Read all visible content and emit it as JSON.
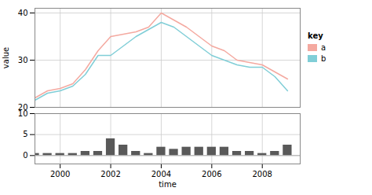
{
  "chart_data": [
    {
      "type": "line",
      "x": [
        1999,
        1999.5,
        2000,
        2000.5,
        2001,
        2001.5,
        2002,
        2002.5,
        2003,
        2003.5,
        2004,
        2004.5,
        2005,
        2005.5,
        2006,
        2006.5,
        2007,
        2007.5,
        2008,
        2008.5,
        2009
      ],
      "series": [
        {
          "name": "a",
          "color": "#F4A9A0",
          "values": [
            22,
            23.5,
            24,
            25,
            28,
            32,
            35,
            35.5,
            36,
            37,
            40,
            38.5,
            37,
            35,
            33,
            32,
            30,
            29.5,
            29,
            27.5,
            26
          ]
        },
        {
          "name": "b",
          "color": "#80CED7",
          "values": [
            21.5,
            23,
            23.5,
            24.5,
            27,
            31,
            31,
            33,
            35,
            36.5,
            38,
            37,
            35,
            33,
            31,
            30,
            29,
            28.5,
            28.5,
            26.5,
            23.5
          ]
        }
      ],
      "xlim": [
        1999,
        2009.5
      ],
      "ylim": [
        20,
        41
      ],
      "xticks": [
        2000,
        2002,
        2004,
        2006,
        2008
      ],
      "yticks": [
        20,
        30,
        40
      ],
      "ylabel": "value",
      "grid": true,
      "tick_labels": "y",
      "legend": "right",
      "legend_title": "key"
    },
    {
      "type": "bar",
      "x": [
        1999,
        1999.5,
        2000,
        2000.5,
        2001,
        2001.5,
        2002,
        2002.5,
        2003,
        2003.5,
        2004,
        2004.5,
        2005,
        2005.5,
        2006,
        2006.5,
        2007,
        2007.5,
        2008,
        2008.5,
        2009
      ],
      "values": [
        0.5,
        0.5,
        0.5,
        0.5,
        1.0,
        1.0,
        4.0,
        2.5,
        1.0,
        0.5,
        2.0,
        1.5,
        2.0,
        2.0,
        2.0,
        2.0,
        1.0,
        1.0,
        0.5,
        1.0,
        2.5
      ],
      "color": "#595959",
      "xlim": [
        1999,
        2009.5
      ],
      "ylim": [
        -2,
        10
      ],
      "xticks": [
        2000,
        2002,
        2004,
        2006,
        2008
      ],
      "yticks": [
        0,
        5,
        10
      ],
      "xlabel": "time",
      "grid": true
    }
  ]
}
